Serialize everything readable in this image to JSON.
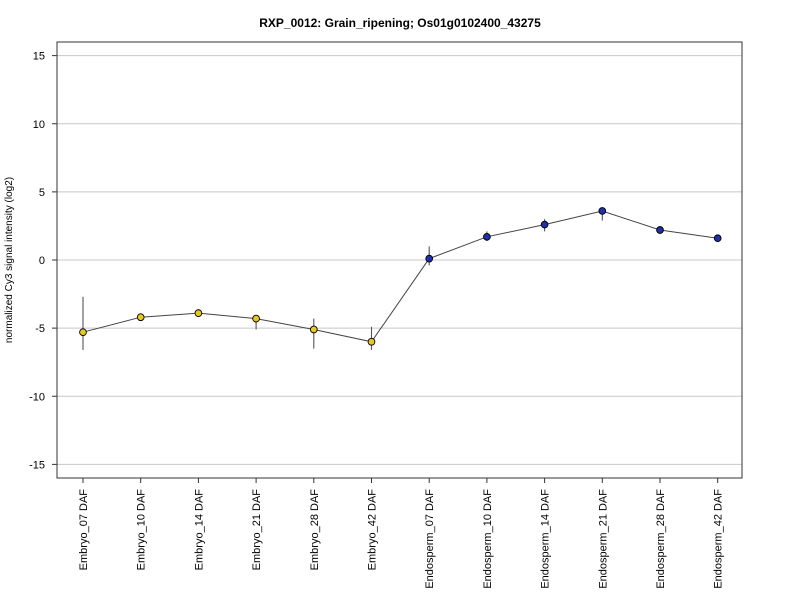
{
  "chart_data": {
    "type": "line",
    "title": "RXP_0012: Grain_ripening; Os01g0102400_43275",
    "ylabel": "normalized Cy3 signal intensity (log2)",
    "xlabel": "",
    "ylim": [
      -16,
      16
    ],
    "yticks": [
      -15,
      -10,
      -5,
      0,
      5,
      10,
      15
    ],
    "grid": true,
    "categories": [
      "Embryo_07 DAF",
      "Embryo_10 DAF",
      "Embryo_14 DAF",
      "Embryo_21 DAF",
      "Embryo_28 DAF",
      "Embryo_42 DAF",
      "Endosperm_07 DAF",
      "Endosperm_10 DAF",
      "Endosperm_14 DAF",
      "Endosperm_21 DAF",
      "Endosperm_28 DAF",
      "Endosperm_42 DAF"
    ],
    "values": [
      -5.3,
      -4.2,
      -3.9,
      -4.3,
      -5.1,
      -6.0,
      0.1,
      1.7,
      2.6,
      3.6,
      2.2,
      1.6
    ],
    "error_low": [
      -6.6,
      -4.2,
      -3.9,
      -5.1,
      -6.5,
      -6.6,
      -0.4,
      1.4,
      2.1,
      2.9,
      1.9,
      1.4
    ],
    "error_high": [
      -2.7,
      -4.2,
      -3.9,
      -4.2,
      -4.3,
      -4.9,
      1.0,
      2.1,
      3.0,
      3.7,
      2.5,
      1.8
    ],
    "point_colors": [
      "#e8c81e",
      "#e8c81e",
      "#e8c81e",
      "#e8c81e",
      "#e8c81e",
      "#e8c81e",
      "#1f2fa8",
      "#1f2fa8",
      "#1f2fa8",
      "#1f2fa8",
      "#1f2fa8",
      "#1f2fa8"
    ],
    "line_color": "#444444"
  }
}
